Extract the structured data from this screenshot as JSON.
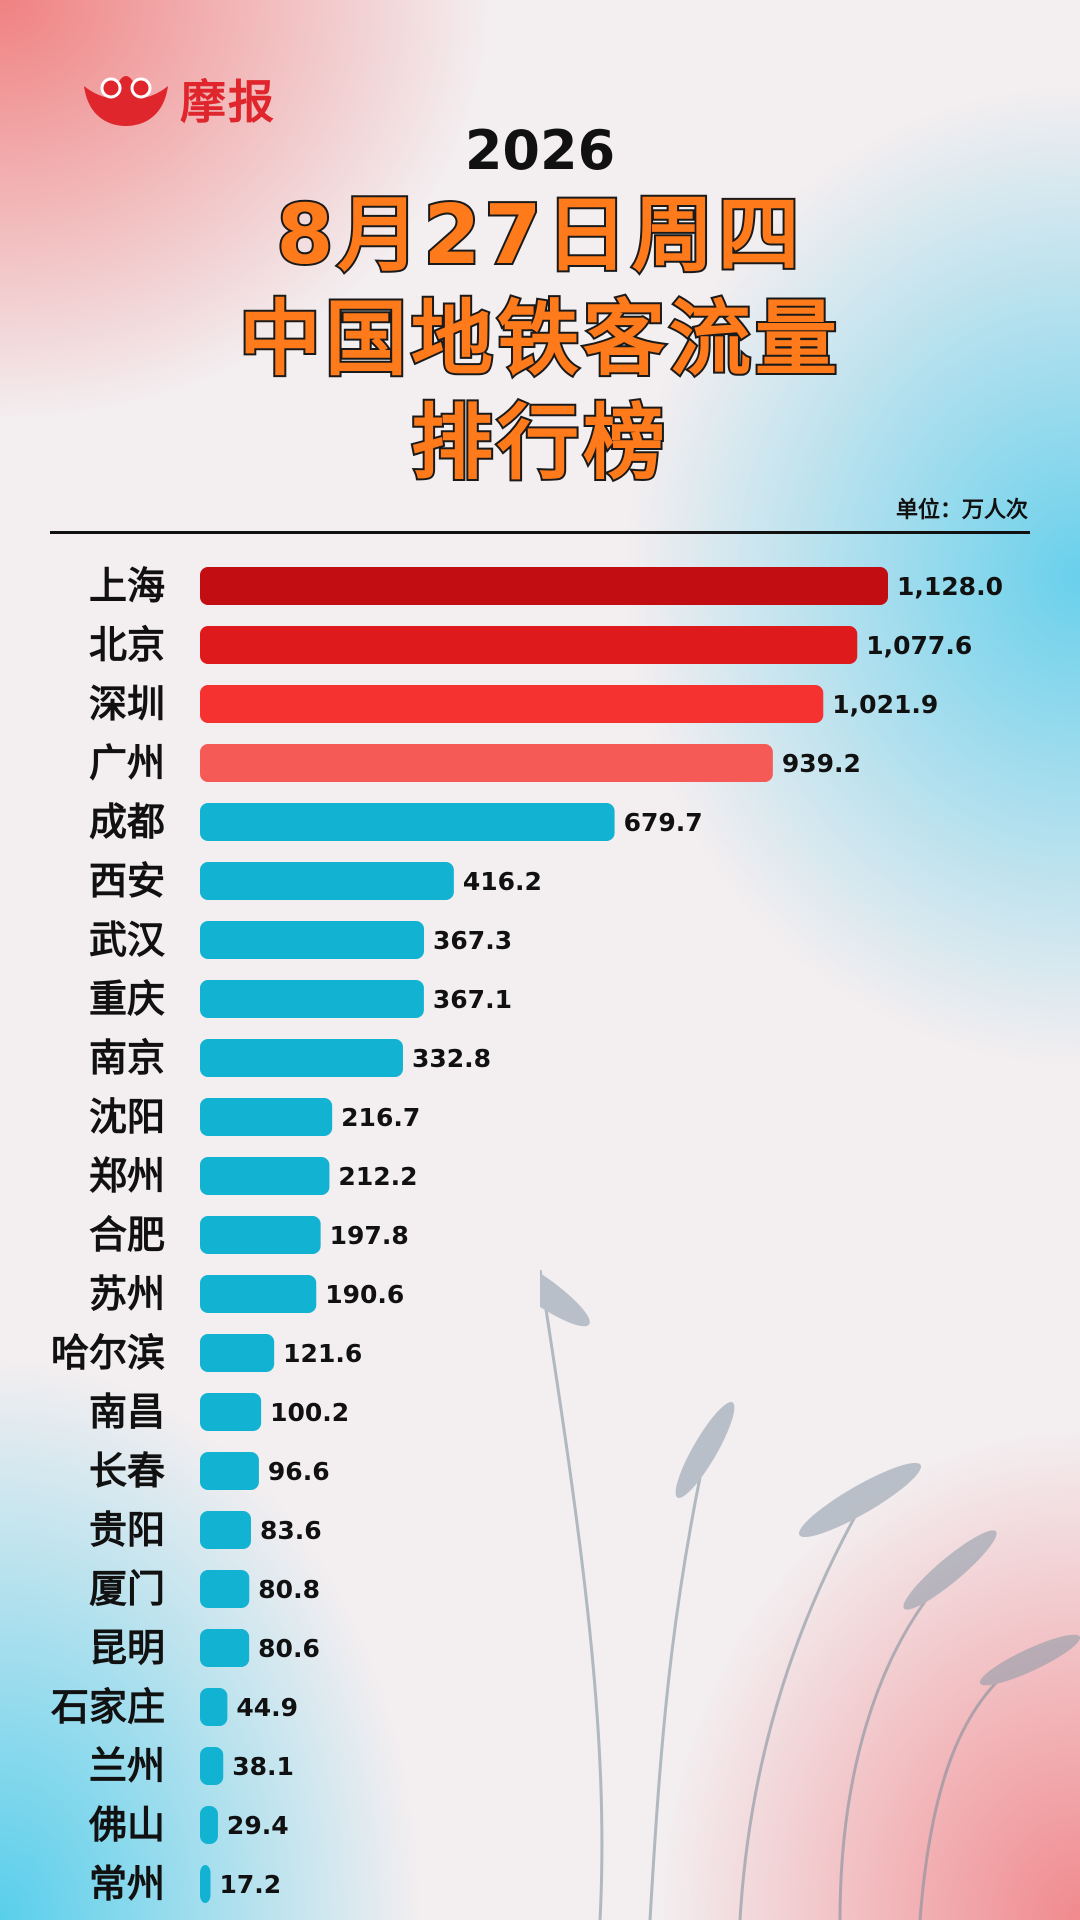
{
  "brand": {
    "name": "摩报",
    "logo_color": "#e0262d"
  },
  "header": {
    "year": "2026",
    "title_lines": [
      "8月27日周四",
      "中国地铁客流量",
      "排行榜"
    ],
    "unit": "单位：万人次"
  },
  "colors": {
    "top1": "#c20d12",
    "top2": "#de1a1d",
    "top3": "#f5322f",
    "top4": "#f55a57",
    "rest": "#12b3d2",
    "title_fill": "#ff7a1a"
  },
  "chart_data": {
    "type": "bar",
    "orientation": "horizontal",
    "categories": [
      "上海",
      "北京",
      "深圳",
      "广州",
      "成都",
      "西安",
      "武汉",
      "重庆",
      "南京",
      "沈阳",
      "郑州",
      "合肥",
      "苏州",
      "哈尔滨",
      "南昌",
      "长春",
      "贵阳",
      "厦门",
      "昆明",
      "石家庄",
      "兰州",
      "佛山",
      "常州"
    ],
    "values": [
      1128.0,
      1077.6,
      1021.9,
      939.2,
      679.7,
      416.2,
      367.3,
      367.1,
      332.8,
      216.7,
      212.2,
      197.8,
      190.6,
      121.6,
      100.2,
      96.6,
      83.6,
      80.8,
      80.6,
      44.9,
      38.1,
      29.4,
      17.2
    ],
    "value_labels": [
      "1,128.0",
      "1,077.6",
      "1,021.9",
      "939.2",
      "679.7",
      "416.2",
      "367.3",
      "367.1",
      "332.8",
      "216.7",
      "212.2",
      "197.8",
      "190.6",
      "121.6",
      "100.2",
      "96.6",
      "83.6",
      "80.8",
      "80.6",
      "44.9",
      "38.1",
      "29.4",
      "17.2"
    ],
    "unit": "万人次",
    "xlim": [
      0,
      1128.0
    ]
  }
}
